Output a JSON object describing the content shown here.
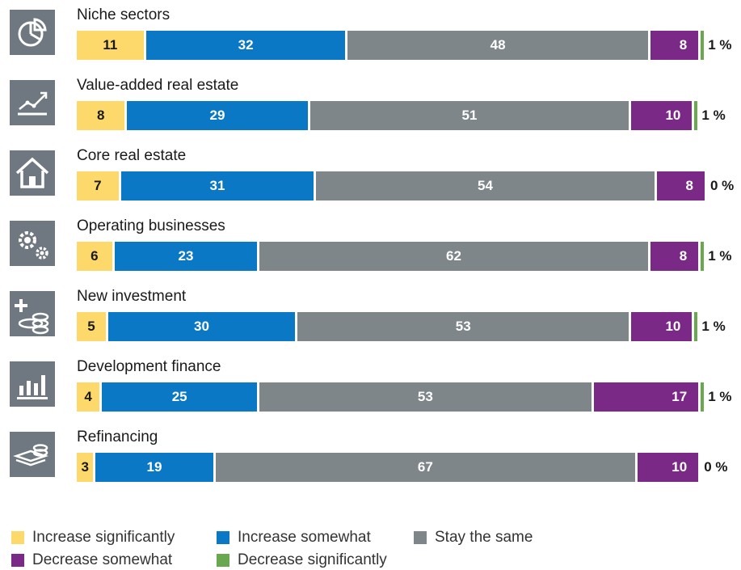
{
  "colors": {
    "increase_significantly": "#fdd86b",
    "increase_somewhat": "#0a78c4",
    "stay_the_same": "#7e8689",
    "decrease_somewhat": "#7a2a86",
    "decrease_significantly": "#6aa84f",
    "icon_background": "#6f7880"
  },
  "chart_data": {
    "type": "bar",
    "orientation": "horizontal",
    "stacked": true,
    "categories": [
      "Niche sectors",
      "Value-added real estate",
      "Core real estate",
      "Operating businesses",
      "New investment",
      "Development finance",
      "Refinancing"
    ],
    "category_icons": [
      "pie-chart-icon",
      "line-chart-icon",
      "house-icon",
      "gears-icon",
      "money-plus-icon",
      "bar-chart-icon",
      "money-stack-icon"
    ],
    "series": [
      {
        "name": "Increase significantly",
        "values": [
          11,
          8,
          7,
          6,
          5,
          4,
          3
        ]
      },
      {
        "name": "Increase somewhat",
        "values": [
          32,
          29,
          31,
          23,
          30,
          25,
          19
        ]
      },
      {
        "name": "Stay the same",
        "values": [
          48,
          51,
          54,
          62,
          53,
          53,
          67
        ]
      },
      {
        "name": "Decrease somewhat",
        "values": [
          8,
          10,
          8,
          8,
          10,
          17,
          10
        ]
      },
      {
        "name": "Decrease significantly",
        "values": [
          1,
          1,
          0,
          1,
          1,
          1,
          0
        ]
      }
    ],
    "last_series_labels": [
      "1 %",
      "1 %",
      "0 %",
      "1 %",
      "1 %",
      "1 %",
      "0 %"
    ],
    "legend_position": "bottom",
    "grid": false
  }
}
